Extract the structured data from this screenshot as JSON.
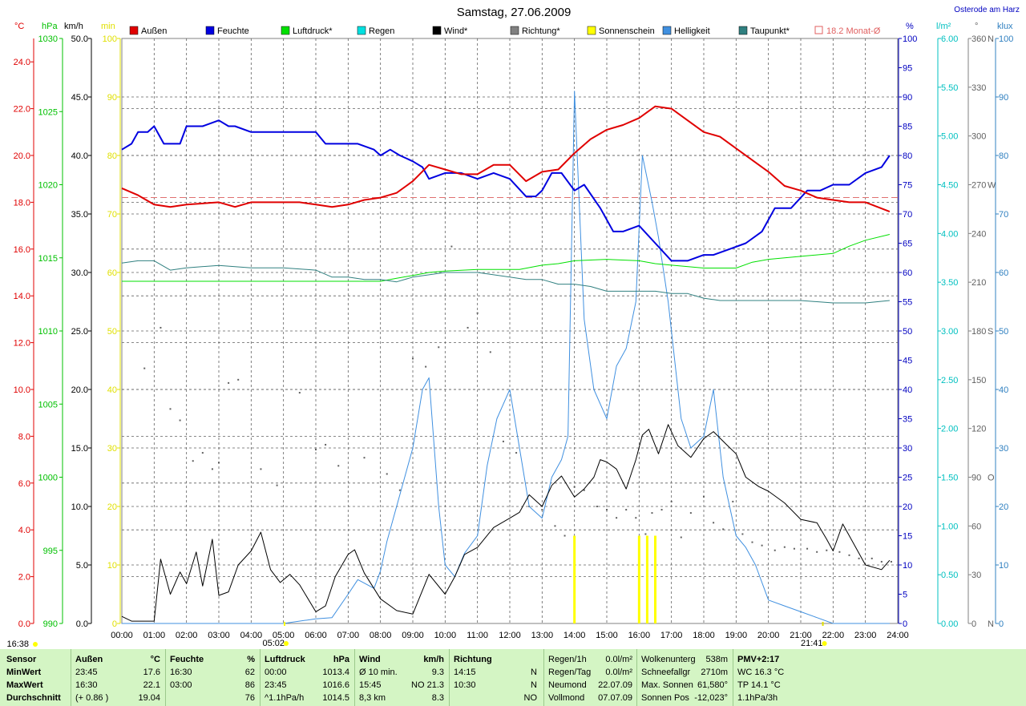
{
  "title": "Samstag, 27.06.2009",
  "location": "Osterode am Harz",
  "legend": [
    {
      "label": "Außen",
      "color": "#e00000"
    },
    {
      "label": "Feuchte",
      "color": "#0000e0"
    },
    {
      "label": "Luftdruck*",
      "color": "#00e000"
    },
    {
      "label": "Regen",
      "color": "#00e0e0"
    },
    {
      "label": "Wind*",
      "color": "#000000"
    },
    {
      "label": "Richtung*",
      "color": "#808080"
    },
    {
      "label": "Sonnenschein",
      "color": "#ffff00"
    },
    {
      "label": "Helligkeit",
      "color": "#4090e0"
    },
    {
      "label": "Taupunkt*",
      "color": "#308080"
    },
    {
      "label": "18.2 Monat-Ø",
      "color": "#e06060"
    }
  ],
  "axis_units": {
    "temp": "°C",
    "pressure": "hPa",
    "wind": "km/h",
    "sun": "min",
    "humidity": "%",
    "rain": "l/m²",
    "direction": "°",
    "lux": "klux"
  },
  "sunrise": "05:02",
  "sunset": "21:41",
  "time_left_label": "16:38",
  "chart_data": {
    "type": "line",
    "x_labels": [
      "00:00",
      "01:00",
      "02:00",
      "03:00",
      "04:00",
      "05:00",
      "06:00",
      "07:00",
      "08:00",
      "09:00",
      "10:00",
      "11:00",
      "12:00",
      "13:00",
      "14:00",
      "15:00",
      "16:00",
      "17:00",
      "18:00",
      "19:00",
      "20:00",
      "21:00",
      "22:00",
      "23:00",
      "24:00"
    ],
    "xlim": [
      0,
      24
    ],
    "axes": {
      "temp": {
        "min": 0,
        "max": 25,
        "ticks": [
          0.0,
          2.0,
          4.0,
          6.0,
          8.0,
          10.0,
          12.0,
          14.0,
          16.0,
          18.0,
          20.0,
          22.0,
          24.0
        ],
        "color": "#e00000"
      },
      "pressure": {
        "min": 990,
        "max": 1030,
        "ticks": [
          990,
          995,
          1000,
          1005,
          1010,
          1015,
          1020,
          1025,
          1030
        ],
        "color": "#00c000"
      },
      "wind": {
        "min": 0,
        "max": 50,
        "ticks": [
          0.0,
          5.0,
          10.0,
          15.0,
          20.0,
          25.0,
          30.0,
          35.0,
          40.0,
          45.0,
          50.0
        ],
        "color": "#000000"
      },
      "sun": {
        "min": 0,
        "max": 100,
        "ticks": [
          0,
          10,
          20,
          30,
          40,
          50,
          60,
          70,
          80,
          90,
          100
        ],
        "color": "#e0e000"
      },
      "humidity": {
        "min": 0,
        "max": 100,
        "ticks": [
          0,
          5,
          10,
          15,
          20,
          25,
          30,
          35,
          40,
          45,
          50,
          55,
          60,
          65,
          70,
          75,
          80,
          85,
          90,
          95,
          100
        ],
        "color": "#0000c0"
      },
      "rain": {
        "min": 0,
        "max": 6,
        "ticks": [
          0.0,
          0.5,
          1.0,
          1.5,
          2.0,
          2.5,
          3.0,
          3.5,
          4.0,
          4.5,
          5.0,
          5.5,
          6.0
        ],
        "color": "#00c0c0"
      },
      "direction": {
        "min": 0,
        "max": 360,
        "ticks": [
          0,
          30,
          60,
          90,
          120,
          150,
          180,
          210,
          240,
          270,
          300,
          330,
          360
        ],
        "labels": {
          "0": "N",
          "90": "O",
          "180": "S",
          "270": "W",
          "360": "N"
        },
        "color": "#606060"
      },
      "lux": {
        "min": 0,
        "max": 100,
        "ticks": [
          0,
          10,
          20,
          30,
          40,
          50,
          60,
          70,
          80,
          90,
          100
        ],
        "color": "#3080c0"
      }
    },
    "monthly_avg_temp": 18.2,
    "series": [
      {
        "name": "Außen",
        "axis": "temp",
        "color": "#e00000",
        "x": [
          0,
          0.5,
          1,
          1.5,
          2,
          3,
          3.5,
          4,
          5,
          5.5,
          6,
          6.5,
          7,
          7.5,
          8,
          8.5,
          9,
          9.5,
          10,
          10.5,
          11,
          11.5,
          12,
          12.5,
          13,
          13.5,
          14,
          14.5,
          15,
          15.5,
          16,
          16.5,
          17,
          17.5,
          18,
          18.5,
          19,
          19.5,
          20,
          20.5,
          21,
          21.5,
          22,
          22.5,
          23,
          23.75
        ],
        "y": [
          18.6,
          18.3,
          17.9,
          17.8,
          17.9,
          18.0,
          17.8,
          18.0,
          18.0,
          18.0,
          17.9,
          17.8,
          17.9,
          18.1,
          18.2,
          18.4,
          18.9,
          19.6,
          19.4,
          19.2,
          19.2,
          19.6,
          19.6,
          18.9,
          19.3,
          19.4,
          20.1,
          20.7,
          21.1,
          21.3,
          21.6,
          22.1,
          22.0,
          21.5,
          21.0,
          20.8,
          20.3,
          19.8,
          19.3,
          18.7,
          18.5,
          18.2,
          18.1,
          18.0,
          18.0,
          17.6
        ]
      },
      {
        "name": "Feuchte",
        "axis": "humidity",
        "color": "#0000e0",
        "x": [
          0,
          0.3,
          0.5,
          0.8,
          1,
          1.3,
          1.8,
          2,
          2.5,
          3,
          3.3,
          3.5,
          4,
          4.5,
          5,
          5.5,
          6,
          6.3,
          6.8,
          7.3,
          7.8,
          8,
          8.3,
          8.6,
          9,
          9.3,
          9.5,
          10,
          10.5,
          11,
          11.5,
          12,
          12.5,
          12.8,
          13,
          13.3,
          13.6,
          14,
          14.3,
          14.8,
          15.2,
          15.5,
          16,
          16.5,
          17,
          17.5,
          18,
          18.3,
          18.8,
          19.3,
          19.8,
          20.2,
          20.7,
          21.2,
          21.6,
          22,
          22.5,
          23,
          23.5,
          23.75
        ],
        "y": [
          81,
          82,
          84,
          84,
          85,
          82,
          82,
          85,
          85,
          86,
          85,
          85,
          84,
          84,
          84,
          84,
          84,
          82,
          82,
          82,
          81,
          80,
          81,
          80,
          79,
          78,
          76,
          77,
          77,
          76,
          77,
          76,
          73,
          73,
          74,
          77,
          77,
          74,
          75,
          71,
          67,
          67,
          68,
          65,
          62,
          62,
          63,
          63,
          64,
          65,
          67,
          71,
          71,
          74,
          74,
          75,
          75,
          77,
          78,
          80
        ]
      },
      {
        "name": "Luftdruck*",
        "axis": "pressure",
        "color": "#00e000",
        "x": [
          0,
          1,
          2,
          3,
          4,
          5,
          6,
          7,
          8,
          8.5,
          9,
          9.5,
          10,
          11,
          12,
          12.3,
          13,
          13.5,
          14,
          15,
          16,
          16.5,
          17,
          18,
          19,
          19.5,
          20,
          21,
          22,
          22.5,
          23,
          23.75
        ],
        "y": [
          1013.4,
          1013.4,
          1013.4,
          1013.4,
          1013.4,
          1013.4,
          1013.4,
          1013.4,
          1013.4,
          1013.6,
          1013.8,
          1014.0,
          1014.1,
          1014.2,
          1014.2,
          1014.2,
          1014.5,
          1014.6,
          1014.8,
          1014.9,
          1014.8,
          1014.6,
          1014.5,
          1014.3,
          1014.3,
          1014.7,
          1014.9,
          1015.1,
          1015.3,
          1015.8,
          1016.2,
          1016.6
        ]
      },
      {
        "name": "Taupunkt*",
        "axis": "temp",
        "color": "#308080",
        "x": [
          0,
          0.5,
          1,
          1.5,
          2,
          3,
          4,
          5,
          6,
          6.5,
          7,
          7.5,
          8,
          8.5,
          9,
          9.5,
          10,
          11,
          12,
          12.5,
          13,
          13.5,
          14,
          14.5,
          15,
          15.5,
          16,
          16.5,
          17,
          17.5,
          18,
          18.5,
          19,
          20,
          21,
          22,
          23,
          23.75
        ],
        "y": [
          15.4,
          15.5,
          15.5,
          15.1,
          15.2,
          15.3,
          15.2,
          15.2,
          15.1,
          14.8,
          14.8,
          14.7,
          14.7,
          14.6,
          14.8,
          14.9,
          15.0,
          15.0,
          14.8,
          14.7,
          14.7,
          14.5,
          14.5,
          14.4,
          14.2,
          14.2,
          14.2,
          14.2,
          14.1,
          14.1,
          13.9,
          13.8,
          13.8,
          13.8,
          13.8,
          13.7,
          13.7,
          13.8
        ]
      },
      {
        "name": "Wind*",
        "axis": "wind",
        "color": "#000000",
        "x": [
          0,
          0.3,
          1,
          1.2,
          1.5,
          1.8,
          2,
          2.3,
          2.5,
          2.8,
          3,
          3.3,
          3.6,
          4,
          4.3,
          4.6,
          4.9,
          5.2,
          5.5,
          6,
          6.3,
          6.6,
          7,
          7.2,
          7.5,
          8,
          8.5,
          9,
          9.5,
          10,
          10.3,
          10.6,
          11,
          11.5,
          12,
          12.3,
          12.6,
          13,
          13.3,
          13.6,
          14,
          14.3,
          14.6,
          14.8,
          15,
          15.3,
          15.6,
          15.9,
          16.1,
          16.3,
          16.6,
          16.9,
          17.2,
          17.6,
          18,
          18.3,
          18.7,
          19,
          19.3,
          19.7,
          20,
          20.5,
          21,
          21.5,
          21.8,
          22,
          22.3,
          23,
          23.5,
          23.75
        ],
        "y": [
          0.6,
          0.2,
          0.2,
          5.5,
          2.5,
          4.4,
          3.4,
          6.1,
          3.2,
          7.2,
          2.4,
          2.7,
          5.0,
          6.2,
          7.8,
          4.6,
          3.5,
          4.2,
          3.3,
          1.0,
          1.5,
          4.0,
          5.9,
          6.3,
          4.3,
          2.1,
          1.1,
          0.8,
          4.2,
          2.5,
          4.0,
          5.9,
          6.5,
          8.2,
          9.0,
          9.5,
          11.0,
          10.0,
          11.8,
          12.6,
          10.8,
          11.5,
          12.5,
          14.0,
          13.8,
          13.2,
          11.5,
          14.0,
          16.1,
          16.6,
          14.5,
          17.0,
          15.2,
          14.2,
          15.8,
          16.4,
          15.3,
          14.5,
          12.5,
          11.7,
          11.3,
          10.3,
          8.9,
          8.6,
          7.2,
          6.2,
          8.5,
          5.0,
          4.6,
          5.4
        ]
      },
      {
        "name": "Helligkeit",
        "axis": "lux",
        "color": "#4090e0",
        "x": [
          0,
          5,
          6,
          6.5,
          7,
          7.3,
          7.8,
          8,
          8.2,
          8.5,
          9,
          9.3,
          9.5,
          9.8,
          10,
          10.3,
          10.6,
          11,
          11.3,
          11.6,
          12,
          12.3,
          12.6,
          13,
          13.3,
          13.6,
          13.8,
          14,
          14.3,
          14.6,
          15,
          15.3,
          15.6,
          15.9,
          16.1,
          16.4,
          16.6,
          16.9,
          17.3,
          17.6,
          18,
          18.3,
          18.6,
          19,
          19.3,
          19.6,
          20,
          20.5,
          21,
          21.5,
          22,
          22.3,
          23,
          23.75
        ],
        "y": [
          0,
          0,
          0.8,
          1,
          5,
          7.5,
          6,
          9,
          14,
          20,
          30,
          40,
          42,
          20,
          10,
          8,
          12,
          15,
          27,
          35,
          40,
          30,
          20,
          18,
          25,
          28,
          32,
          91,
          52,
          40,
          35,
          44,
          47,
          55,
          80,
          72,
          66,
          55,
          35,
          30,
          32,
          40,
          25,
          15,
          13,
          10,
          4,
          3,
          2,
          1,
          0,
          0,
          0,
          0
        ]
      },
      {
        "name": "Sonnenschein",
        "axis": "sun",
        "color": "#ffff00",
        "type": "bar",
        "x": [
          14.0,
          16.0,
          16.25,
          16.5
        ],
        "y": [
          15,
          15,
          15,
          15
        ]
      }
    ],
    "direction_points": {
      "x": [
        0.7,
        1.2,
        1.5,
        1.8,
        2.2,
        2.5,
        2.8,
        3.0,
        3.3,
        3.6,
        4.3,
        4.8,
        5.5,
        6.0,
        6.3,
        6.7,
        7.5,
        8.2,
        8.6,
        9.0,
        9.4,
        9.8,
        10.2,
        10.7,
        11.0,
        11.4,
        11.8,
        12.2,
        12.6,
        13.0,
        13.4,
        13.7,
        14.0,
        14.3,
        14.7,
        15.0,
        15.3,
        15.6,
        15.9,
        16.2,
        16.4,
        16.7,
        17.0,
        17.3,
        17.6,
        18.0,
        18.3,
        18.6,
        18.9,
        19.2,
        19.5,
        19.8,
        20.2,
        20.5,
        20.8,
        21.2,
        21.5,
        21.8,
        22.2,
        22.5,
        22.8,
        23.2,
        23.5,
        23.8
      ],
      "y": [
        157,
        182,
        132,
        125,
        100,
        105,
        95,
        99,
        148,
        150,
        95,
        85,
        142,
        107,
        110,
        97,
        102,
        92,
        82,
        163,
        158,
        170,
        232,
        182,
        191,
        167,
        112,
        105,
        72,
        70,
        60,
        54,
        84,
        82,
        72,
        70,
        65,
        70,
        65,
        55,
        68,
        70,
        75,
        53,
        68,
        78,
        62,
        58,
        75,
        55,
        50,
        48,
        45,
        47,
        46,
        46,
        44,
        45,
        44,
        42,
        40,
        40,
        38,
        38
      ]
    },
    "footer": {
      "columns": {
        "sensor": [
          "Sensor",
          "MinWert",
          "MaxWert",
          "Durchschnitt"
        ],
        "aussen": {
          "header": "Außen",
          "unit": "°C",
          "rows": [
            [
              "23:45",
              "17.6"
            ],
            [
              "16:30",
              "22.1"
            ],
            [
              "(+ 0.86 )",
              "19.04"
            ]
          ]
        },
        "feuchte": {
          "header": "Feuchte",
          "unit": "%",
          "rows": [
            [
              "16:30",
              "62"
            ],
            [
              "03:00",
              "86"
            ],
            [
              "",
              "76"
            ]
          ]
        },
        "luftdruck": {
          "header": "Luftdruck",
          "unit": "hPa",
          "rows": [
            [
              "00:00",
              "1013.4"
            ],
            [
              "23:45",
              "1016.6"
            ],
            [
              "^1.1hPa/h",
              "1014.5"
            ]
          ]
        },
        "wind": {
          "header": "Wind",
          "unit": "km/h",
          "rows": [
            [
              "Ø 10 min.",
              "9.3"
            ],
            [
              "15:45",
              "NO 21.3"
            ],
            [
              "8,3 km",
              "8.3"
            ]
          ]
        },
        "richtung": {
          "header": "Richtung",
          "unit": "",
          "rows": [
            [
              "14:15",
              "N"
            ],
            [
              "10:30",
              "N"
            ],
            [
              "",
              "NO"
            ]
          ]
        },
        "rain": [
          [
            "Regen/1h",
            "0.0l/m²"
          ],
          [
            "Regen/Tag",
            "0.0l/m²"
          ],
          [
            "Neumond",
            "22.07.09"
          ],
          [
            "Vollmond",
            "07.07.09"
          ]
        ],
        "cloud": [
          [
            "Wolkenunterg",
            "538m"
          ],
          [
            "Schneefallgr",
            "2710m"
          ],
          [
            "Max. Sonnen",
            "61,580°"
          ],
          [
            "Sonnen Pos",
            "-12,023°"
          ]
        ],
        "pmv": [
          "PMV+2:17",
          "WC 16.3 °C",
          "TP 14.1 °C",
          "1.1hPa/3h"
        ]
      }
    }
  }
}
